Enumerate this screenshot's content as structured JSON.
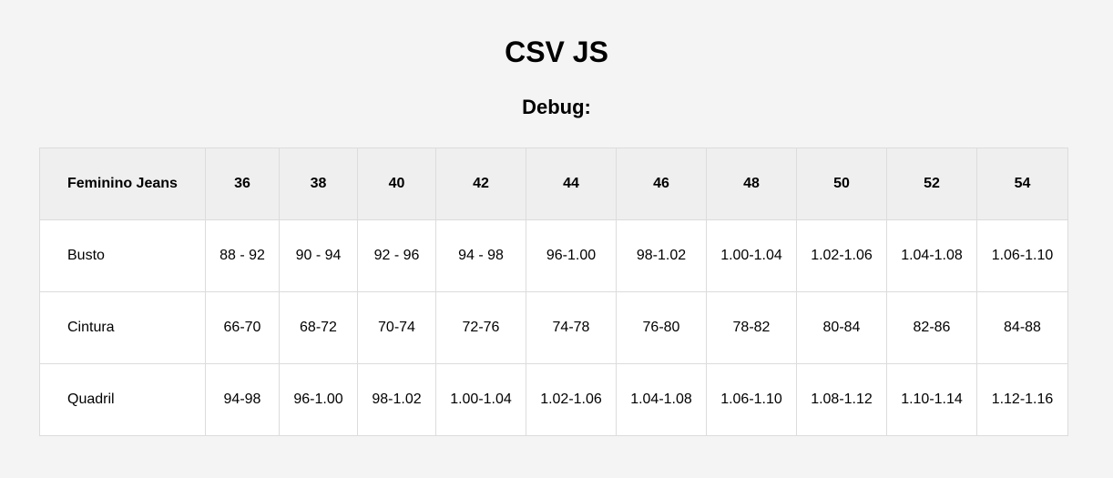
{
  "page": {
    "title": "CSV JS",
    "debug_label": "Debug:"
  },
  "table": {
    "headers": [
      "Feminino Jeans",
      "36",
      "38",
      "40",
      "42",
      "44",
      "46",
      "48",
      "50",
      "52",
      "54"
    ],
    "rows": [
      [
        "Busto",
        "88 - 92",
        "90 - 94",
        "92 - 96",
        "94 - 98",
        "96-1.00",
        "98-1.02",
        "1.00-1.04",
        "1.02-1.06",
        "1.04-1.08",
        "1.06-1.10"
      ],
      [
        "Cintura",
        "66-70",
        "68-72",
        "70-74",
        "72-76",
        "74-78",
        "76-80",
        "78-82",
        "80-84",
        "82-86",
        "84-88"
      ],
      [
        "Quadril",
        "94-98",
        "96-1.00",
        "98-1.02",
        "1.00-1.04",
        "1.02-1.06",
        "1.04-1.08",
        "1.06-1.10",
        "1.08-1.12",
        "1.10-1.14",
        "1.12-1.16"
      ]
    ]
  }
}
